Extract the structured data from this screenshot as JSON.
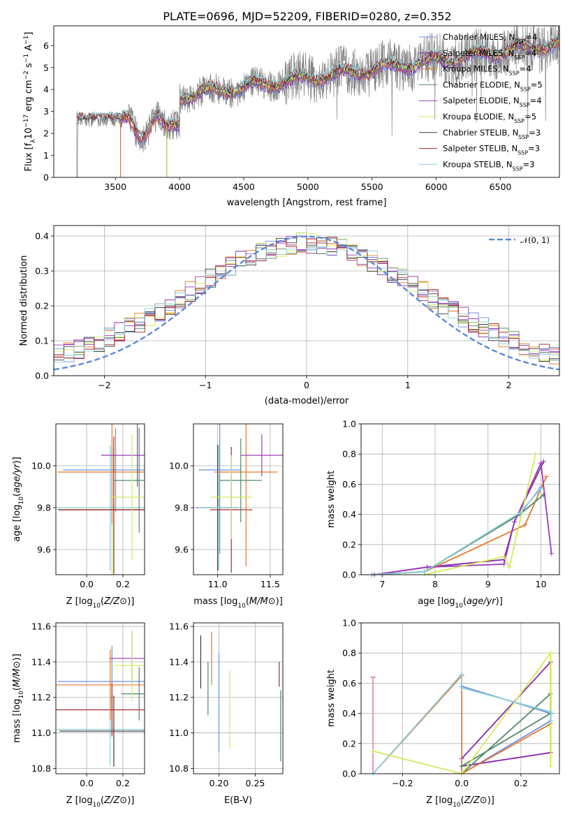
{
  "title": "PLATE=0696, MJD=52209, FIBERID=0280, z=0.352",
  "colors": {
    "grid": "#b0b0b0",
    "series": [
      "#6e8fe0",
      "#8a2aa8",
      "#e8772a",
      "#4f8a66",
      "#9a3ab8",
      "#d4ea5a",
      "#3a3a3a",
      "#a82a2a",
      "#8fd0d8"
    ],
    "normal": "#5a88dc",
    "pink": "#e47cb0"
  },
  "legend": {
    "items": [
      {
        "prefix": "Chabrier MILES, N",
        "sub": "SSP",
        "suffix": "=4"
      },
      {
        "prefix": "Salpeter MILES, N",
        "sub": "SSP",
        "suffix": "=4"
      },
      {
        "prefix": "Kroupa MILES, N",
        "sub": "SSP",
        "suffix": "=4"
      },
      {
        "prefix": "Chabrier ELODIE, N",
        "sub": "SSP",
        "suffix": "=5"
      },
      {
        "prefix": "Salpeter ELODIE, N",
        "sub": "SSP",
        "suffix": "=4"
      },
      {
        "prefix": "Kroupa ELODIE, N",
        "sub": "SSP",
        "suffix": "=5"
      },
      {
        "prefix": "Chabrier STELIB, N",
        "sub": "SSP",
        "suffix": "=3"
      },
      {
        "prefix": "Salpeter STELIB, N",
        "sub": "SSP",
        "suffix": "=3"
      },
      {
        "prefix": "Kroupa STELIB, N",
        "sub": "SSP",
        "suffix": "=3"
      }
    ],
    "normal_label": "𝒩(0, 1)"
  },
  "chart_data": [
    {
      "id": "spectrum",
      "type": "line",
      "xlabel": "wavelength [Angstrom, rest frame]",
      "ylabel": "Flux [f  10  erg cm  s  A  ]",
      "ylabel_parts": {
        "a": "Flux [f",
        "sub": "λ",
        "b": "10",
        "sup1": "−17",
        "c": " erg cm",
        "sup2": "−2",
        "d": " s",
        "sup3": "−1",
        "e": " A",
        "sup4": "−1",
        "f": "]"
      },
      "xlim": [
        3020,
        6960
      ],
      "ylim": [
        0,
        6.9
      ],
      "xticks": [
        3500,
        4000,
        4500,
        5000,
        5500,
        6000,
        6500
      ],
      "yticks": [
        0,
        1,
        2,
        3,
        4,
        5,
        6
      ],
      "model_start": {
        "MILES": 3540,
        "ELODIE": 3900,
        "STELIB": 3200
      },
      "data_range": [
        3200,
        6960
      ]
    },
    {
      "id": "residuals",
      "type": "histogram",
      "xlabel": "(data-model)/error",
      "ylabel": "Normed distribution",
      "xlim": [
        -2.5,
        2.5
      ],
      "ylim": [
        0,
        0.43
      ],
      "xticks": [
        -2,
        -1,
        0,
        1,
        2
      ],
      "yticks": [
        0.0,
        0.1,
        0.2,
        0.3,
        0.4
      ],
      "bin_width": 0.1,
      "normal_curve": {
        "mean": 0,
        "sigma": 1
      }
    },
    {
      "id": "age-vs-Z",
      "type": "errorbar",
      "xlabel": "Z [log10(Z/Z⊙)]",
      "ylabel": "age  [log10(age/yr)]",
      "xlim": [
        -0.17,
        0.32
      ],
      "ylim": [
        9.48,
        10.2
      ],
      "xticks": [
        0.0,
        0.2
      ],
      "yticks": [
        9.6,
        9.8,
        10.0
      ],
      "points": [
        {
          "c": 5,
          "x": 0.14,
          "y": 9.79,
          "xe": 0.29,
          "ye": 0.35
        },
        {
          "c": 0,
          "x": 0.16,
          "y": 9.98,
          "xe": 0.29,
          "ye": 0.2
        },
        {
          "c": 8,
          "x": 0.13,
          "y": 9.8,
          "xe": 0.3,
          "ye": 0.3
        },
        {
          "c": 6,
          "x": 0.15,
          "y": 9.79,
          "xe": 0.31,
          "ye": 0.3
        },
        {
          "c": 2,
          "x": 0.14,
          "y": 9.97,
          "xe": 0.3,
          "ye": 0.25
        },
        {
          "c": 4,
          "x": 0.28,
          "y": 10.05,
          "xe": 0.2,
          "ye": 0.15
        },
        {
          "c": 3,
          "x": 0.29,
          "y": 9.93,
          "xe": 0.14,
          "ye": 0.25
        },
        {
          "c": 7,
          "x": 0.15,
          "y": 9.79,
          "xe": 0.3,
          "ye": 0.35
        },
        {
          "c": 5,
          "x": 0.25,
          "y": 9.85,
          "xe": 0.12,
          "ye": 0.3
        }
      ]
    },
    {
      "id": "age-vs-mass",
      "type": "errorbar",
      "xlabel": "mass [log10(M/M⊙)]",
      "ylabel": "",
      "xlim": [
        10.77,
        11.62
      ],
      "ylim": [
        9.48,
        10.2
      ],
      "xticks": [
        11.0,
        11.5
      ],
      "yticks": [
        9.6,
        9.8,
        10.0
      ],
      "points": [
        {
          "c": 0,
          "x": 11.02,
          "y": 9.98,
          "xe": 0.2,
          "ye": 0.4
        },
        {
          "c": 6,
          "x": 11.0,
          "y": 9.8,
          "xe": 0.2,
          "ye": 0.3
        },
        {
          "c": 8,
          "x": 11.01,
          "y": 9.8,
          "xe": 0.2,
          "ye": 0.3
        },
        {
          "c": 7,
          "x": 11.13,
          "y": 9.79,
          "xe": 0.2,
          "ye": 0.3
        },
        {
          "c": 2,
          "x": 11.27,
          "y": 9.97,
          "xe": 0.3,
          "ye": 0.45
        },
        {
          "c": 3,
          "x": 11.22,
          "y": 9.93,
          "xe": 0.2,
          "ye": 0.2
        },
        {
          "c": 4,
          "x": 11.42,
          "y": 10.05,
          "xe": 0.2,
          "ye": 0.1
        },
        {
          "c": 5,
          "x": 11.13,
          "y": 9.85,
          "xe": 0.2,
          "ye": 0.2
        }
      ]
    },
    {
      "id": "massweight-vs-age",
      "type": "line",
      "xlabel": "age  [log10(age/yr)]",
      "ylabel": "mass weight",
      "xlim": [
        6.6,
        10.35
      ],
      "ylim": [
        0,
        1.0
      ],
      "xticks": [
        7,
        8,
        9,
        10
      ],
      "yticks": [
        0.0,
        0.2,
        0.4,
        0.6,
        0.8,
        1.0
      ],
      "series": [
        {
          "c": 0,
          "x": [
            6.8,
            7.8,
            9.6,
            10.0
          ],
          "y": [
            0.0,
            0.02,
            0.4,
            0.58
          ]
        },
        {
          "c": 1,
          "x": [
            6.85,
            7.85,
            9.3,
            9.5,
            10.05
          ],
          "y": [
            0.0,
            0.05,
            0.1,
            0.35,
            0.75
          ]
        },
        {
          "c": 2,
          "x": [
            6.8,
            7.8,
            9.7,
            10.1
          ],
          "y": [
            0.0,
            0.02,
            0.33,
            0.65
          ]
        },
        {
          "c": 3,
          "x": [
            6.8,
            7.8,
            9.6,
            10.05
          ],
          "y": [
            0.0,
            0.02,
            0.4,
            0.53
          ]
        },
        {
          "c": 4,
          "x": [
            6.85,
            7.85,
            9.3,
            9.5,
            10.0,
            10.2
          ],
          "y": [
            0.0,
            0.05,
            0.07,
            0.35,
            0.74,
            0.14
          ]
        },
        {
          "c": 5,
          "x": [
            7.8,
            9.3,
            9.4,
            9.9
          ],
          "y": [
            0.0,
            0.12,
            0.05,
            0.8
          ]
        },
        {
          "c": 8,
          "x": [
            6.8,
            7.8,
            9.6,
            10.0
          ],
          "y": [
            0.0,
            0.02,
            0.41,
            0.57
          ]
        }
      ]
    },
    {
      "id": "mass-vs-Z",
      "type": "errorbar",
      "xlabel": "Z [log10(Z/Z⊙)]",
      "ylabel": "mass [log10(M/M⊙)]",
      "xlim": [
        -0.17,
        0.32
      ],
      "ylim": [
        10.77,
        11.62
      ],
      "xticks": [
        0.0,
        0.2
      ],
      "yticks": [
        10.8,
        11.0,
        11.2,
        11.4,
        11.6
      ],
      "points": [
        {
          "c": 0,
          "x": 0.14,
          "y": 11.29,
          "xe": 0.3,
          "ye": 0.2
        },
        {
          "c": 8,
          "x": 0.13,
          "y": 11.02,
          "xe": 0.3,
          "ye": 0.2
        },
        {
          "c": 6,
          "x": 0.15,
          "y": 11.01,
          "xe": 0.3,
          "ye": 0.2
        },
        {
          "c": 7,
          "x": 0.14,
          "y": 11.13,
          "xe": 0.32,
          "ye": 0.15
        },
        {
          "c": 2,
          "x": 0.13,
          "y": 11.27,
          "xe": 0.3,
          "ye": 0.2
        },
        {
          "c": 4,
          "x": 0.25,
          "y": 11.42,
          "xe": 0.12,
          "ye": 0.15
        },
        {
          "c": 3,
          "x": 0.29,
          "y": 11.22,
          "xe": 0.1,
          "ye": 0.15
        },
        {
          "c": 5,
          "x": 0.25,
          "y": 11.38,
          "xe": 0.1,
          "ye": 0.2
        }
      ]
    },
    {
      "id": "mass-vs-EBV",
      "type": "errorbar",
      "xlabel": "E(B-V)",
      "ylabel": "",
      "xlim": [
        0.165,
        0.288
      ],
      "ylim": [
        10.77,
        11.62
      ],
      "xticks": [
        0.2,
        0.25
      ],
      "yticks": [
        10.8,
        11.0,
        11.2,
        11.4,
        11.6
      ],
      "points": [
        {
          "c": 6,
          "x": 0.175,
          "y": 11.4,
          "xe": 0,
          "ye": 0.15
        },
        {
          "c": 3,
          "x": 0.185,
          "y": 11.25,
          "xe": 0,
          "ye": 0.15
        },
        {
          "c": 2,
          "x": 0.19,
          "y": 11.42,
          "xe": 0,
          "ye": 0.15
        },
        {
          "c": 0,
          "x": 0.2,
          "y": 11.17,
          "xe": 0,
          "ye": 0.28
        },
        {
          "c": 5,
          "x": 0.215,
          "y": 11.13,
          "xe": 0,
          "ye": 0.22
        },
        {
          "c": 7,
          "x": 0.283,
          "y": 11.33,
          "xe": 0,
          "ye": 0.07
        },
        {
          "c": 3,
          "x": 0.285,
          "y": 11.04,
          "xe": 0,
          "ye": 0.2
        }
      ]
    },
    {
      "id": "massweight-vs-Z",
      "type": "line",
      "xlabel": "Z [log10(Z/Z⊙)]",
      "ylabel": "mass weight",
      "xlim": [
        -0.34,
        0.33
      ],
      "ylim": [
        0,
        1.0
      ],
      "xticks": [
        -0.2,
        0.0,
        0.2
      ],
      "yticks": [
        0.0,
        0.2,
        0.4,
        0.6,
        0.8,
        1.0
      ],
      "series": [
        {
          "c": 0,
          "x": [
            -0.3,
            0.0,
            0.0,
            0.3,
            0.3,
            0.0
          ],
          "y": [
            0.0,
            0.65,
            0.58,
            0.4,
            0.35,
            0.0
          ]
        },
        {
          "c": 1,
          "x": [
            0.0,
            0.3,
            0.3,
            0.0
          ],
          "y": [
            0.1,
            0.74,
            0.14,
            0.05
          ]
        },
        {
          "c": 2,
          "x": [
            -0.3,
            0.0,
            0.0,
            0.3,
            0.3
          ],
          "y": [
            0.0,
            0.65,
            0.0,
            0.33,
            0.35
          ]
        },
        {
          "c": 3,
          "x": [
            0.0,
            0.3,
            0.3,
            0.0
          ],
          "y": [
            0.05,
            0.4,
            0.53,
            0.0
          ]
        },
        {
          "c": 5,
          "x": [
            -0.3,
            0.0,
            0.3,
            0.3
          ],
          "y": [
            0.15,
            0.0,
            0.8,
            0.05
          ]
        },
        {
          "c": 8,
          "x": [
            -0.3,
            0.0,
            0.0,
            0.3,
            0.3
          ],
          "y": [
            0.0,
            0.66,
            0.57,
            0.41,
            0.35
          ]
        }
      ],
      "pink_bar": {
        "x": -0.3,
        "y0": 0.0,
        "y1": 0.64
      }
    }
  ]
}
